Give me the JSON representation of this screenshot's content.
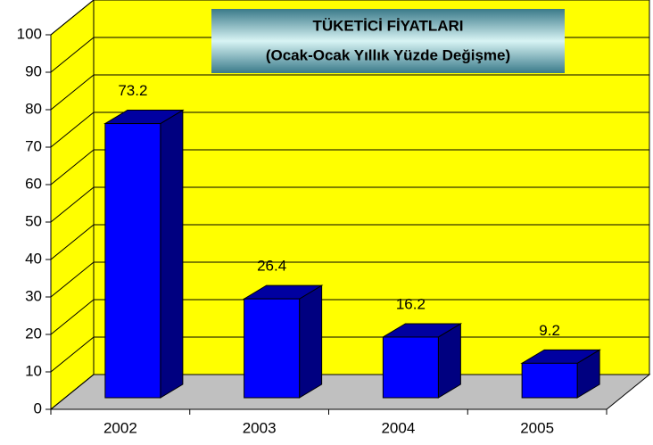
{
  "chart_data": {
    "type": "bar3d",
    "title": "TÜKETİCİ FİYATLARI",
    "subtitle": "(Ocak-Ocak Yıllık Yüzde Değişme)",
    "categories": [
      "2002",
      "2003",
      "2004",
      "2005"
    ],
    "values": [
      73.2,
      26.4,
      16.2,
      9.2
    ],
    "color": "#0000ff",
    "wall_color": "#ffff00",
    "floor_color": "#c0c0c0",
    "ylim": [
      0,
      100
    ],
    "yticks": [
      0,
      10,
      20,
      30,
      40,
      50,
      60,
      70,
      80,
      90,
      100
    ],
    "grid": true
  }
}
